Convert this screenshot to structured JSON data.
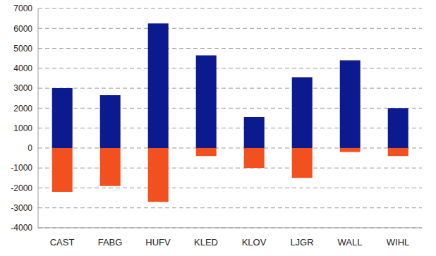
{
  "chart_data": {
    "type": "bar",
    "categories": [
      "CAST",
      "FABG",
      "HUFV",
      "KLED",
      "KLOV",
      "LJGR",
      "WALL",
      "WIHL"
    ],
    "series": [
      {
        "color": "#0b1a8e",
        "values": [
          3000,
          2650,
          6250,
          4650,
          1550,
          3550,
          4400,
          2000
        ]
      },
      {
        "color": "#f2501e",
        "values": [
          -2200,
          -1900,
          -2700,
          -400,
          -1000,
          -1500,
          -200,
          -400
        ]
      }
    ],
    "stacked": true,
    "ylim": [
      -4000,
      7000
    ],
    "yticks": [
      -4000,
      -3000,
      -2000,
      -1000,
      0,
      1000,
      2000,
      3000,
      4000,
      5000,
      6000,
      7000
    ],
    "grid": true
  }
}
